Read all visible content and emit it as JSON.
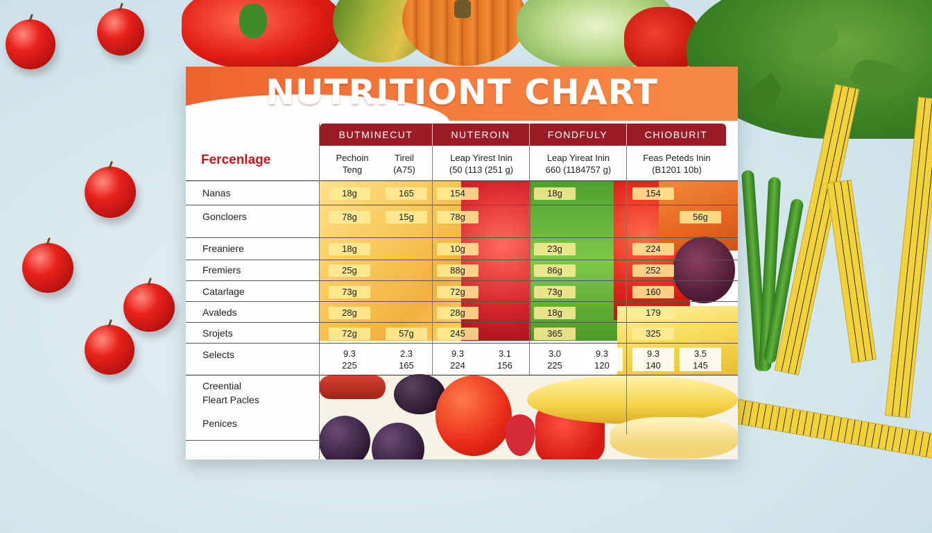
{
  "chart": {
    "title": "NUTRITIONT CHART",
    "section_label": "Fercenlage",
    "column_headers": [
      "BUTMINECUT",
      "NUTEROIN",
      "FONDFULY",
      "CHIOBURIT"
    ],
    "column_sublabels": [
      {
        "left": "Pechoin\nTeng",
        "right": "Tireil\n(A75)"
      },
      {
        "left": "Leap Yirest Inin\n(50 (113 (251 g)",
        "right": ""
      },
      {
        "left": "Leap Yireat Inin\n660 (1184757 g)",
        "right": ""
      },
      {
        "left": "Feas Peteds Inin\n(B1201 10b)",
        "right": ""
      }
    ],
    "rows": [
      {
        "label": "Nanas",
        "values": [
          "18g",
          "165",
          "154",
          "",
          "18g",
          "",
          "154",
          ""
        ]
      },
      {
        "label": "Goncloers",
        "values": [
          "78g",
          "15g",
          "78g",
          "",
          "",
          "",
          "",
          "56g"
        ]
      },
      {
        "label": "Freaniere",
        "values": [
          "18g",
          "",
          "10g",
          "",
          "23g",
          "",
          "224",
          ""
        ]
      },
      {
        "label": "Fremiers",
        "values": [
          "25g",
          "",
          "88g",
          "",
          "86g",
          "",
          "252",
          ""
        ]
      },
      {
        "label": "Catarlage",
        "values": [
          "73g",
          "",
          "72g",
          "",
          "73g",
          "",
          "160",
          ""
        ]
      },
      {
        "label": "Avaleds",
        "values": [
          "28g",
          "",
          "28g",
          "",
          "18g",
          "",
          "179",
          ""
        ]
      },
      {
        "label": "Srojets",
        "values": [
          "72g",
          "57g",
          "245",
          "",
          "365",
          "",
          "325",
          ""
        ]
      },
      {
        "label": "Selects",
        "values": [
          "9.3\n225",
          "2.3\n165",
          "9.3\n224",
          "3.1\n156",
          "3.0\n225",
          "9.3\n120",
          "9.3\n140",
          "3.5\n145"
        ]
      }
    ],
    "footer_labels": [
      "Creential",
      "Fleart Pacles",
      "Penices"
    ]
  },
  "colors": {
    "banner_orange": "#f06a32",
    "header_maroon": "#9a1d25",
    "section_red": "#c8141a",
    "background": "#d3e6ec"
  }
}
